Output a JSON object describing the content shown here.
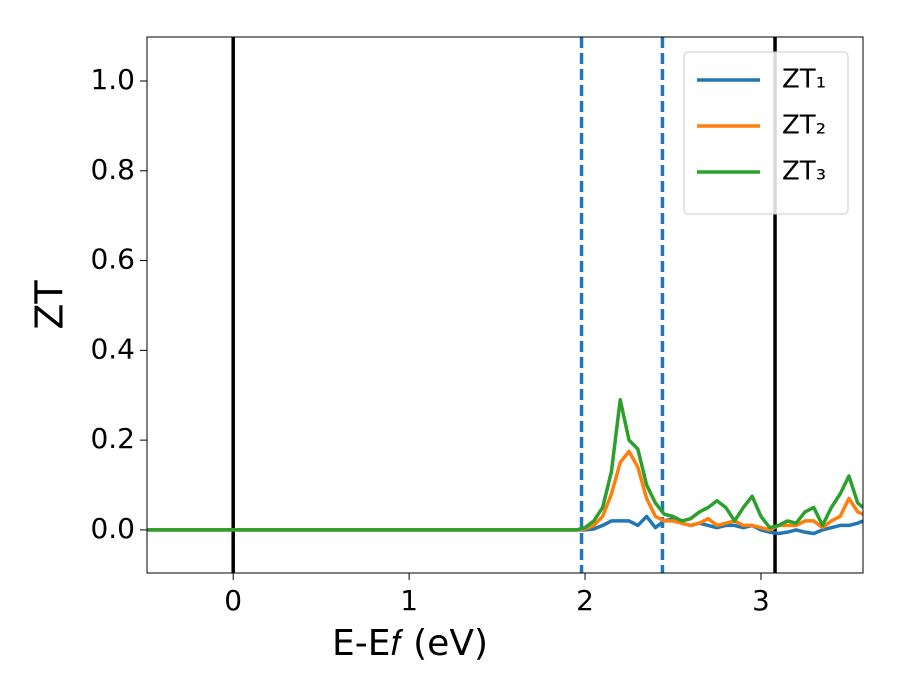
{
  "chart_data": {
    "type": "line",
    "xlabel": "E-E𝑓 (eV)",
    "ylabel": "ZT",
    "x": [
      -0.49,
      1.9,
      1.95,
      2.0,
      2.05,
      2.1,
      2.15,
      2.2,
      2.25,
      2.3,
      2.35,
      2.4,
      2.45,
      2.5,
      2.55,
      2.6,
      2.65,
      2.7,
      2.75,
      2.8,
      2.85,
      2.9,
      2.95,
      3.0,
      3.05,
      3.1,
      3.15,
      3.2,
      3.25,
      3.3,
      3.35,
      3.4,
      3.45,
      3.5,
      3.55,
      3.58
    ],
    "series": [
      {
        "name": "ZT₁",
        "color": "#1f77b4",
        "values": [
          0,
          0,
          0,
          0,
          0.002,
          0.01,
          0.02,
          0.02,
          0.02,
          0.01,
          0.03,
          0.005,
          0.02,
          0.025,
          0.015,
          0.01,
          0.015,
          0.01,
          0.005,
          0.01,
          0.01,
          0.005,
          0.01,
          0,
          -0.005,
          -0.008,
          -0.005,
          0,
          -0.005,
          -0.008,
          0,
          0.005,
          0.01,
          0.01,
          0.015,
          0.02
        ]
      },
      {
        "name": "ZT₂",
        "color": "#ff7f0e",
        "values": [
          0,
          0,
          0,
          0.002,
          0.01,
          0.03,
          0.08,
          0.15,
          0.175,
          0.14,
          0.07,
          0.03,
          0.02,
          0.02,
          0.015,
          0.01,
          0.015,
          0.025,
          0.01,
          0.015,
          0.02,
          0.01,
          0.01,
          0.005,
          0,
          0.01,
          0.01,
          0.01,
          0.02,
          0.02,
          0.005,
          0.02,
          0.03,
          0.07,
          0.04,
          0.035
        ]
      },
      {
        "name": "ZT₃",
        "color": "#2ca02c",
        "values": [
          0,
          0,
          0,
          0.005,
          0.02,
          0.05,
          0.13,
          0.29,
          0.2,
          0.18,
          0.1,
          0.06,
          0.035,
          0.03,
          0.02,
          0.025,
          0.04,
          0.05,
          0.065,
          0.05,
          0.02,
          0.05,
          0.075,
          0.03,
          0.005,
          0.01,
          0.02,
          0.015,
          0.04,
          0.05,
          0.01,
          0.05,
          0.08,
          0.12,
          0.06,
          0.05
        ]
      }
    ],
    "vlines": [
      {
        "x": 0,
        "color": "#000000",
        "style": "solid"
      },
      {
        "x": 3.08,
        "color": "#000000",
        "style": "solid"
      },
      {
        "x": 1.98,
        "color": "#1f77b4",
        "style": "dashed"
      },
      {
        "x": 2.44,
        "color": "#1f77b4",
        "style": "dashed"
      }
    ],
    "xlim": [
      -0.49,
      3.58
    ],
    "xticks": [
      0,
      1,
      2,
      3
    ],
    "ylim": [
      -0.096,
      1.098
    ],
    "yticks": [
      {
        "value": 0,
        "label": "0.0"
      },
      {
        "value": 0.2,
        "label": "0.2"
      },
      {
        "value": 0.4,
        "label": "0.4"
      },
      {
        "value": 0.6,
        "label": "0.6"
      },
      {
        "value": 0.8,
        "label": "0.8"
      },
      {
        "value": 1,
        "label": "1.0"
      }
    ],
    "legend": "upper right"
  }
}
